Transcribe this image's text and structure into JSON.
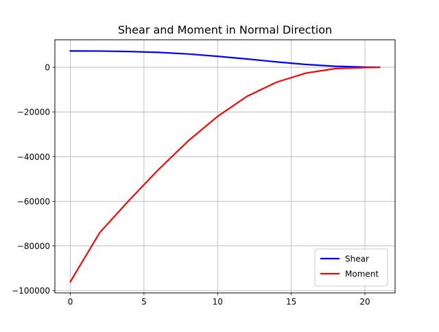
{
  "chart_data": {
    "type": "line",
    "title": "Shear and Moment in Normal Direction",
    "xlabel": "",
    "ylabel": "",
    "xlim": [
      -1.05,
      22.05
    ],
    "ylim": [
      -101000,
      12300
    ],
    "xticks": [
      0,
      5,
      10,
      15,
      20
    ],
    "yticks": [
      0,
      -20000,
      -40000,
      -60000,
      -80000,
      -100000
    ],
    "grid": true,
    "legend_position": "lower right",
    "series": [
      {
        "name": "Shear",
        "color": "#0000ff",
        "x": [
          0,
          2,
          4,
          6,
          8,
          10,
          12,
          14,
          16,
          18,
          20,
          21
        ],
        "y": [
          7300,
          7250,
          7050,
          6650,
          5950,
          4900,
          3700,
          2400,
          1250,
          450,
          80,
          0
        ]
      },
      {
        "name": "Moment",
        "color": "#ff0000",
        "x": [
          0,
          2,
          4,
          6,
          8,
          10,
          12,
          14,
          16,
          18,
          20,
          21
        ],
        "y": [
          -96000,
          -74000,
          -59500,
          -45700,
          -33000,
          -22000,
          -13000,
          -6700,
          -2600,
          -600,
          -150,
          0
        ]
      }
    ]
  }
}
